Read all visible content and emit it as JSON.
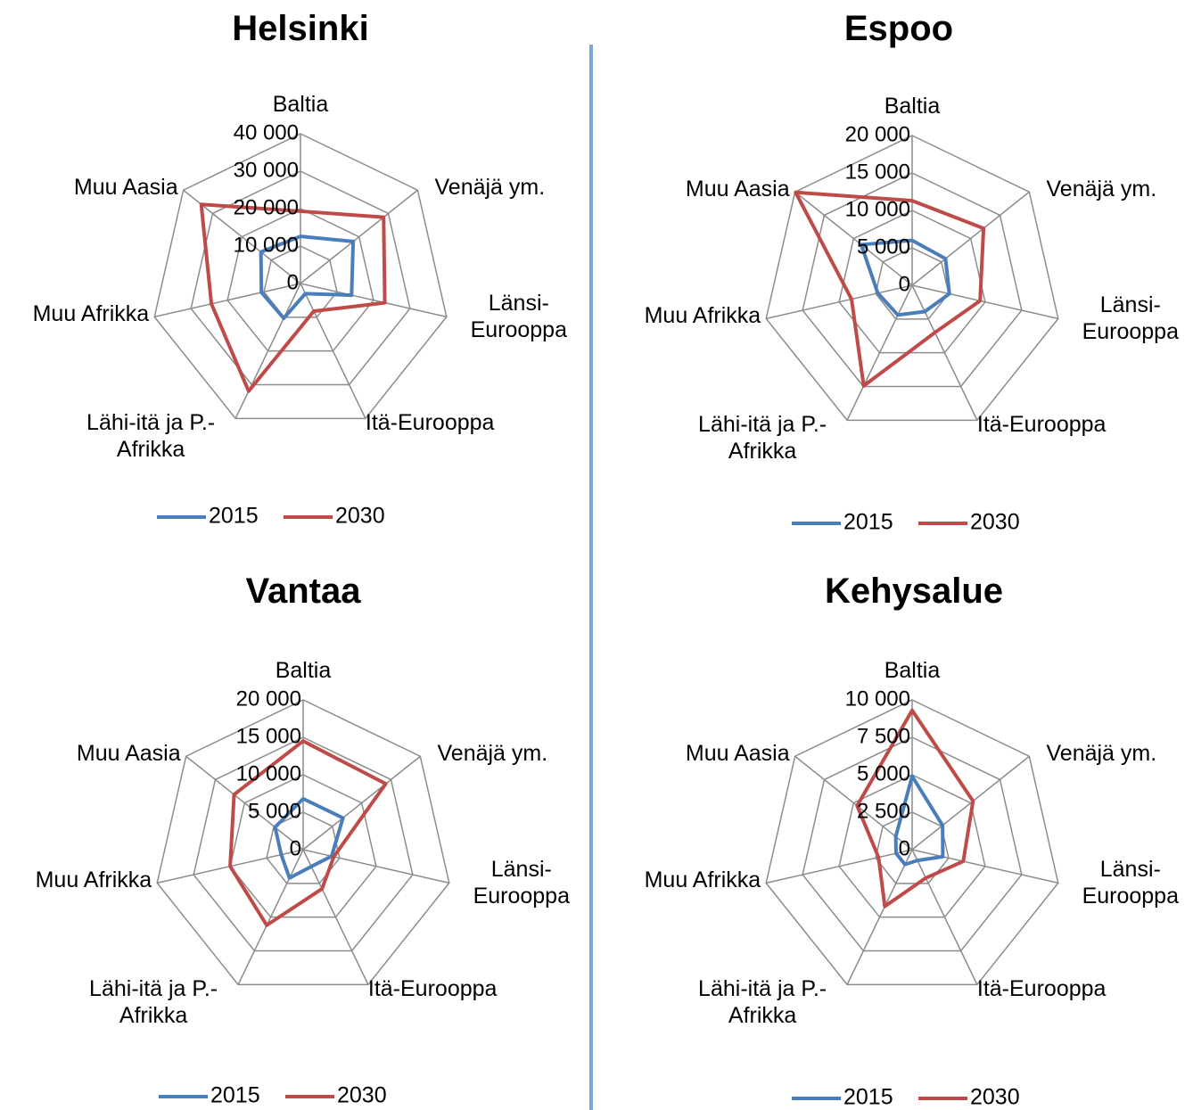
{
  "chart_data": [
    {
      "type": "radar",
      "title": "Helsinki",
      "categories": [
        "Baltia",
        "Venäjä ym.",
        "Länsi-Eurooppa",
        "Itä-Eurooppa",
        "Lähi-itä ja P.-Afrikka",
        "Muu Afrikka",
        "Muu Aasia"
      ],
      "series": [
        {
          "name": "2015",
          "color": "#4a7ebb",
          "values": [
            12600,
            18000,
            14000,
            3000,
            10300,
            10700,
            13500
          ]
        },
        {
          "name": "2030",
          "color": "#be4b48",
          "values": [
            19300,
            28400,
            23100,
            8200,
            31900,
            24400,
            33900
          ]
        }
      ],
      "ylim": [
        0,
        40000
      ],
      "yticks": [
        0,
        {
          "value": 10000,
          "label": "10 000"
        },
        {
          "value": 20000,
          "label": "20 000"
        },
        {
          "value": 30000,
          "label": "30 000"
        },
        {
          "value": 40000,
          "label": "40 000"
        }
      ]
    },
    {
      "type": "radar",
      "title": "Espoo",
      "categories": [
        "Baltia",
        "Venäjä ym.",
        "Länsi-Eurooppa",
        "Itä-Eurooppa",
        "Lähi-itä ja P.-Afrikka",
        "Muu Afrikka",
        "Muu Aasia"
      ],
      "series": [
        {
          "name": "2015",
          "color": "#4a7ebb",
          "values": [
            6000,
            5700,
            5100,
            3900,
            4400,
            4700,
            8700
          ]
        },
        {
          "name": "2030",
          "color": "#be4b48",
          "values": [
            11300,
            12200,
            9300,
            7000,
            14900,
            8300,
            19900
          ]
        }
      ],
      "ylim": [
        0,
        20000
      ],
      "yticks": [
        0,
        {
          "value": 5000,
          "label": "5 000"
        },
        {
          "value": 10000,
          "label": "10 000"
        },
        {
          "value": 15000,
          "label": "15 000"
        },
        {
          "value": 20000,
          "label": "20 000"
        }
      ]
    },
    {
      "type": "radar",
      "title": "Vantaa",
      "categories": [
        "Baltia",
        "Venäjä ym.",
        "Länsi-Eurooppa",
        "Itä-Eurooppa",
        "Lähi-itä ja P.-Afrikka",
        "Muu Afrikka",
        "Muu Aasia"
      ],
      "series": [
        {
          "name": "2015",
          "color": "#4a7ebb",
          "values": [
            6800,
            6800,
            3900,
            2500,
            4200,
            3000,
            4800
          ]
        },
        {
          "name": "2030",
          "color": "#be4b48",
          "values": [
            14500,
            14100,
            4200,
            5800,
            11200,
            10000,
            11800
          ]
        }
      ],
      "ylim": [
        0,
        20000
      ],
      "yticks": [
        0,
        {
          "value": 5000,
          "label": "5 000"
        },
        {
          "value": 10000,
          "label": "10 000"
        },
        {
          "value": 15000,
          "label": "15 000"
        },
        {
          "value": 20000,
          "label": "20 000"
        }
      ]
    },
    {
      "type": "radar",
      "title": "Kehysalue",
      "categories": [
        "Baltia",
        "Venäjä ym.",
        "Länsi-Eurooppa",
        "Itä-Eurooppa",
        "Lähi-itä ja P.-Afrikka",
        "Muu Afrikka",
        "Muu Aasia"
      ],
      "series": [
        {
          "name": "2015",
          "color": "#4a7ebb",
          "values": [
            4900,
            2600,
            2100,
            800,
            1100,
            1100,
            1400
          ]
        },
        {
          "name": "2030",
          "color": "#be4b48",
          "values": [
            9300,
            5200,
            3500,
            2100,
            4200,
            2300,
            4700
          ]
        }
      ],
      "ylim": [
        0,
        10000
      ],
      "yticks": [
        0,
        {
          "value": 2500,
          "label": "2 500"
        },
        {
          "value": 5000,
          "label": "5 000"
        },
        {
          "value": 7500,
          "label": "7 500"
        },
        {
          "value": 10000,
          "label": "10 000"
        }
      ]
    }
  ]
}
